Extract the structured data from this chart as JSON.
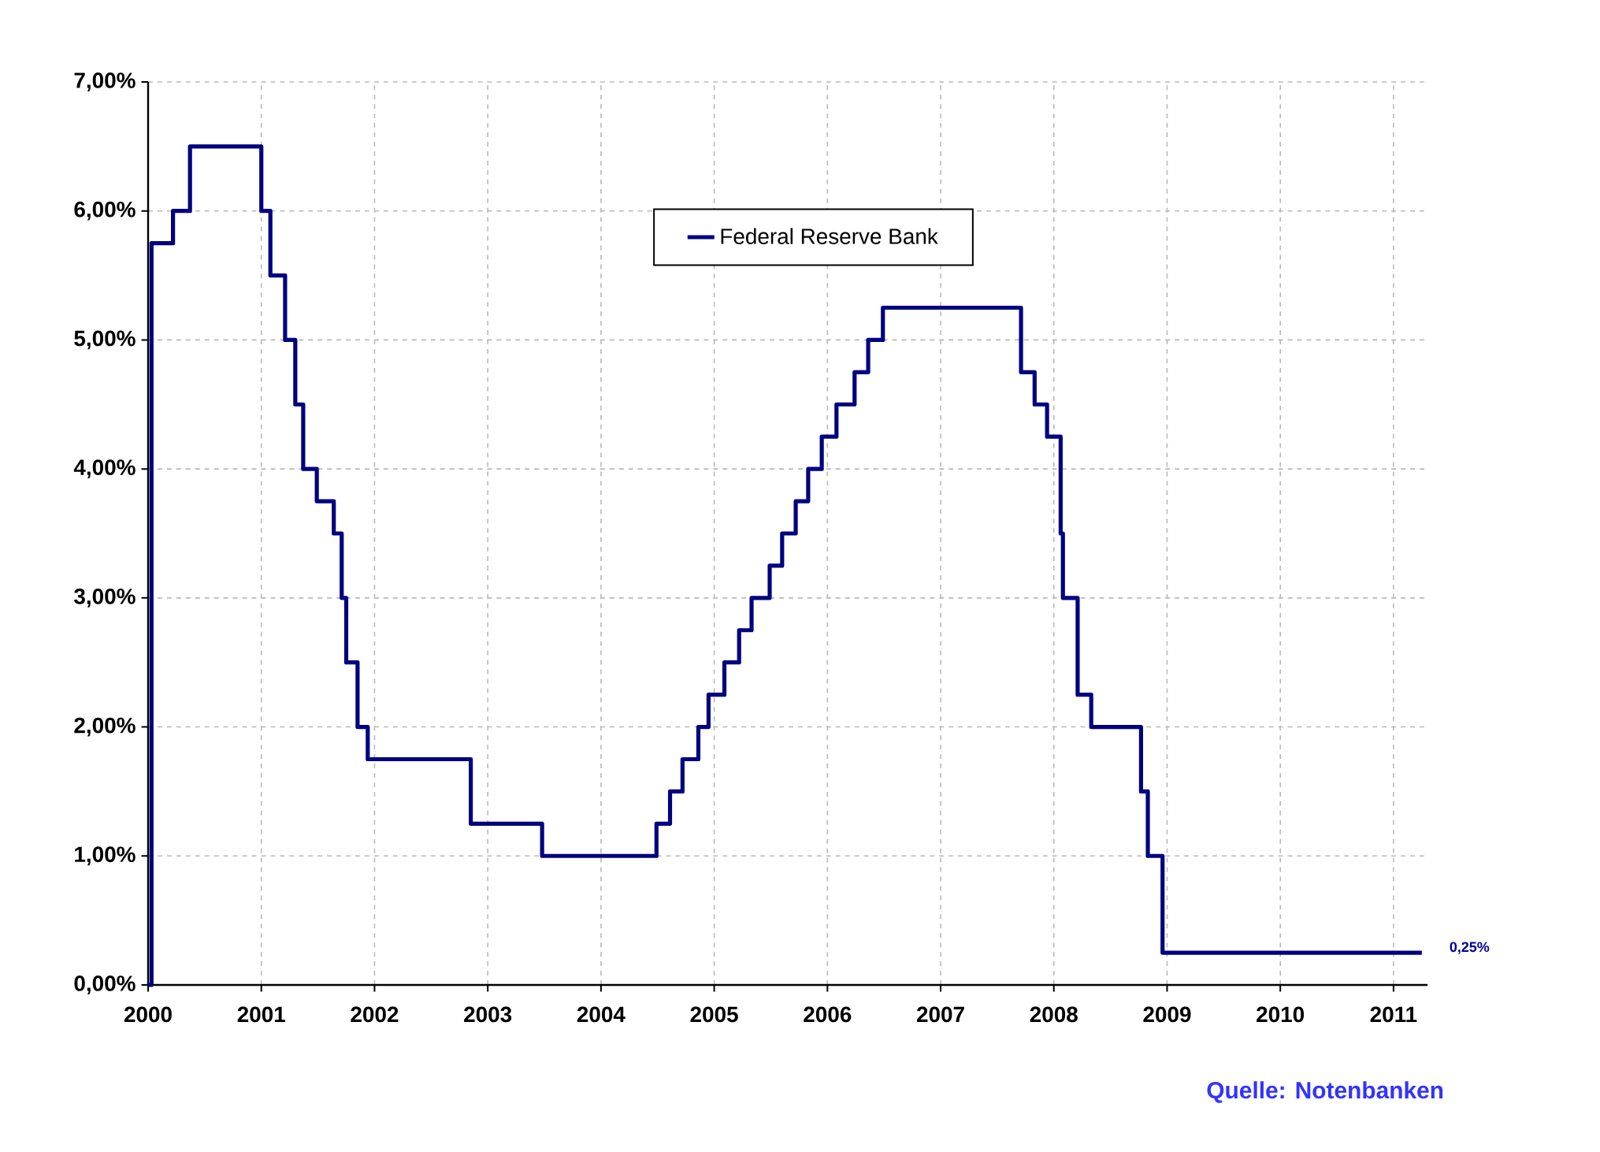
{
  "chart_data": {
    "type": "step",
    "x": [
      2000.0,
      2000.03,
      2000.22,
      2000.37,
      2001.0,
      2001.08,
      2001.21,
      2001.3,
      2001.37,
      2001.49,
      2001.64,
      2001.71,
      2001.75,
      2001.85,
      2001.94,
      2002.85,
      2003.48,
      2004.49,
      2004.61,
      2004.72,
      2004.86,
      2004.95,
      2005.09,
      2005.22,
      2005.33,
      2005.49,
      2005.6,
      2005.72,
      2005.83,
      2005.95,
      2006.08,
      2006.24,
      2006.36,
      2006.49,
      2007.71,
      2007.83,
      2007.94,
      2008.06,
      2008.08,
      2008.21,
      2008.33,
      2008.77,
      2008.83,
      2008.96,
      2011.25
    ],
    "series": [
      {
        "name": "Federal Reserve Bank",
        "color": "#000080",
        "values": [
          0,
          5.75,
          6.0,
          6.5,
          6.0,
          5.5,
          5.0,
          4.5,
          4.0,
          3.75,
          3.5,
          3.0,
          2.5,
          2.0,
          1.75,
          1.25,
          1.0,
          1.25,
          1.5,
          1.75,
          2.0,
          2.25,
          2.5,
          2.75,
          3.0,
          3.25,
          3.5,
          3.75,
          4.0,
          4.25,
          4.5,
          4.75,
          5.0,
          5.25,
          4.75,
          4.5,
          4.25,
          3.5,
          3.0,
          2.25,
          2.0,
          1.5,
          1.0,
          0.25,
          0.25
        ]
      }
    ],
    "xlim": [
      2000,
      2011.3
    ],
    "xticks": [
      2000,
      2001,
      2002,
      2003,
      2004,
      2005,
      2006,
      2007,
      2008,
      2009,
      2010,
      2011
    ],
    "ylim": [
      0,
      7
    ],
    "yticks": [
      {
        "value": 0,
        "label": "0,00%"
      },
      {
        "value": 1,
        "label": "1,00%"
      },
      {
        "value": 2,
        "label": "2,00%"
      },
      {
        "value": 3,
        "label": "3,00%"
      },
      {
        "value": 4,
        "label": "4,00%"
      },
      {
        "value": 5,
        "label": "5,00%"
      },
      {
        "value": 6,
        "label": "6,00%"
      },
      {
        "value": 7,
        "label": "7,00%"
      }
    ],
    "grid": true,
    "legend": "top",
    "annotations": [
      {
        "text": "0,25%",
        "x": 2011.25,
        "y": 0.25
      },
      "Quelle: Notenbanken"
    ]
  }
}
